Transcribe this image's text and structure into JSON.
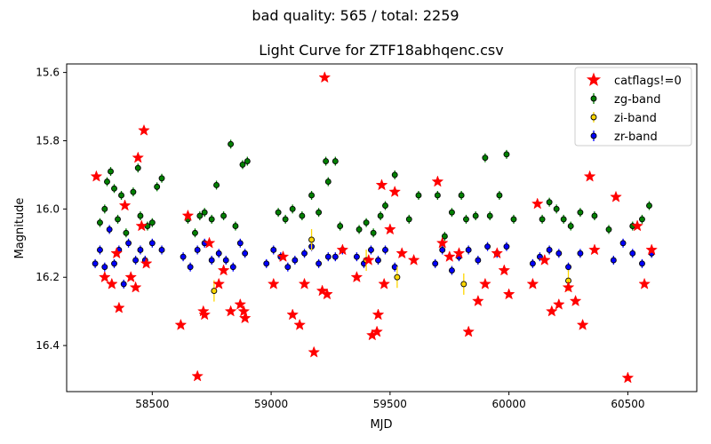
{
  "figure": {
    "suptitle": "bad quality: 565 / total: 2259"
  },
  "chart_data": {
    "type": "scatter",
    "title": "Light Curve for ZTF18abhqenc.csv",
    "xlabel": "MJD",
    "ylabel": "Magnitude",
    "xlim": [
      58140,
      60790
    ],
    "ylim": [
      16.535,
      15.575
    ],
    "y_inverted": true,
    "grid": false,
    "legend_position": "top-right",
    "x_ticks": [
      58500,
      59000,
      59500,
      60000,
      60500
    ],
    "x_tick_labels": [
      "58500",
      "59000",
      "59500",
      "60000",
      "60500"
    ],
    "y_ticks": [
      15.6,
      15.8,
      16.0,
      16.2,
      16.4
    ],
    "y_tick_labels": [
      "15.6",
      "15.8",
      "16.0",
      "16.2",
      "16.4"
    ],
    "series": [
      {
        "name": "catflags!=0",
        "marker": "star",
        "color": "#ff0000",
        "points": [
          [
            58265,
            15.905
          ],
          [
            58300,
            16.2
          ],
          [
            58330,
            16.22
          ],
          [
            58350,
            16.13
          ],
          [
            58360,
            16.29
          ],
          [
            58385,
            15.99
          ],
          [
            58410,
            16.2
          ],
          [
            58430,
            16.23
          ],
          [
            58440,
            15.85
          ],
          [
            58455,
            16.05
          ],
          [
            58465,
            15.77
          ],
          [
            58475,
            16.16
          ],
          [
            58620,
            16.34
          ],
          [
            58650,
            16.02
          ],
          [
            58690,
            16.49
          ],
          [
            58715,
            16.3
          ],
          [
            58720,
            16.31
          ],
          [
            58740,
            16.1
          ],
          [
            58780,
            16.22
          ],
          [
            58800,
            16.18
          ],
          [
            58830,
            16.3
          ],
          [
            58870,
            16.28
          ],
          [
            58885,
            16.3
          ],
          [
            58890,
            16.32
          ],
          [
            59010,
            16.22
          ],
          [
            59050,
            16.14
          ],
          [
            59090,
            16.31
          ],
          [
            59120,
            16.34
          ],
          [
            59140,
            16.22
          ],
          [
            59180,
            16.42
          ],
          [
            59215,
            16.24
          ],
          [
            59225,
            15.615
          ],
          [
            59235,
            16.25
          ],
          [
            59300,
            16.12
          ],
          [
            59360,
            16.2
          ],
          [
            59410,
            16.15
          ],
          [
            59425,
            16.37
          ],
          [
            59445,
            16.36
          ],
          [
            59450,
            16.31
          ],
          [
            59465,
            15.93
          ],
          [
            59475,
            16.22
          ],
          [
            59500,
            16.06
          ],
          [
            59520,
            15.95
          ],
          [
            59550,
            16.13
          ],
          [
            59600,
            16.15
          ],
          [
            59700,
            15.92
          ],
          [
            59720,
            16.1
          ],
          [
            59750,
            16.14
          ],
          [
            59790,
            16.13
          ],
          [
            59830,
            16.36
          ],
          [
            59870,
            16.27
          ],
          [
            59900,
            16.22
          ],
          [
            59950,
            16.13
          ],
          [
            59980,
            16.18
          ],
          [
            60000,
            16.25
          ],
          [
            60100,
            16.22
          ],
          [
            60120,
            15.985
          ],
          [
            60150,
            16.15
          ],
          [
            60180,
            16.3
          ],
          [
            60210,
            16.28
          ],
          [
            60250,
            16.23
          ],
          [
            60280,
            16.27
          ],
          [
            60310,
            16.34
          ],
          [
            60340,
            15.905
          ],
          [
            60360,
            16.12
          ],
          [
            60450,
            15.965
          ],
          [
            60500,
            16.495
          ],
          [
            60540,
            16.05
          ],
          [
            60570,
            16.22
          ],
          [
            60600,
            16.12
          ]
        ]
      },
      {
        "name": "zg-band",
        "marker": "circle",
        "color": "#008000",
        "points": [
          [
            58280,
            16.04
          ],
          [
            58300,
            16.0
          ],
          [
            58310,
            15.92
          ],
          [
            58325,
            15.89
          ],
          [
            58340,
            15.94
          ],
          [
            58355,
            16.03
          ],
          [
            58370,
            15.96
          ],
          [
            58390,
            16.07
          ],
          [
            58420,
            15.95
          ],
          [
            58440,
            15.88
          ],
          [
            58450,
            16.02
          ],
          [
            58480,
            16.05
          ],
          [
            58500,
            16.04
          ],
          [
            58520,
            15.935
          ],
          [
            58540,
            15.91
          ],
          [
            58650,
            16.03
          ],
          [
            58680,
            16.07
          ],
          [
            58700,
            16.02
          ],
          [
            58720,
            16.01
          ],
          [
            58750,
            16.03
          ],
          [
            58770,
            15.93
          ],
          [
            58800,
            16.02
          ],
          [
            58830,
            15.81
          ],
          [
            58850,
            16.05
          ],
          [
            58880,
            15.87
          ],
          [
            58900,
            15.86
          ],
          [
            59030,
            16.01
          ],
          [
            59060,
            16.03
          ],
          [
            59090,
            16.0
          ],
          [
            59130,
            16.02
          ],
          [
            59170,
            15.96
          ],
          [
            59200,
            16.01
          ],
          [
            59230,
            15.86
          ],
          [
            59240,
            15.92
          ],
          [
            59270,
            15.86
          ],
          [
            59290,
            16.05
          ],
          [
            59370,
            16.06
          ],
          [
            59400,
            16.04
          ],
          [
            59430,
            16.07
          ],
          [
            59460,
            16.02
          ],
          [
            59480,
            15.99
          ],
          [
            59520,
            15.9
          ],
          [
            59580,
            16.03
          ],
          [
            59620,
            15.96
          ],
          [
            59700,
            15.96
          ],
          [
            59730,
            16.08
          ],
          [
            59760,
            16.01
          ],
          [
            59800,
            15.96
          ],
          [
            59820,
            16.03
          ],
          [
            59860,
            16.02
          ],
          [
            59900,
            15.85
          ],
          [
            59920,
            16.02
          ],
          [
            59960,
            15.96
          ],
          [
            59990,
            15.84
          ],
          [
            60020,
            16.03
          ],
          [
            60140,
            16.03
          ],
          [
            60170,
            15.98
          ],
          [
            60200,
            16.0
          ],
          [
            60230,
            16.03
          ],
          [
            60260,
            16.05
          ],
          [
            60300,
            16.01
          ],
          [
            60360,
            16.02
          ],
          [
            60420,
            16.06
          ],
          [
            60520,
            16.05
          ],
          [
            60560,
            16.03
          ],
          [
            60590,
            15.99
          ]
        ]
      },
      {
        "name": "zi-band",
        "marker": "circle",
        "color": "#ffd700",
        "points": [
          [
            58760,
            16.24
          ],
          [
            59170,
            16.09
          ],
          [
            59400,
            16.15
          ],
          [
            59530,
            16.2
          ],
          [
            59810,
            16.22
          ],
          [
            60250,
            16.21
          ]
        ]
      },
      {
        "name": "zr-band",
        "marker": "circle",
        "color": "#0000ff",
        "points": [
          [
            58260,
            16.16
          ],
          [
            58280,
            16.12
          ],
          [
            58300,
            16.17
          ],
          [
            58320,
            16.06
          ],
          [
            58340,
            16.16
          ],
          [
            58360,
            16.12
          ],
          [
            58380,
            16.22
          ],
          [
            58400,
            16.1
          ],
          [
            58430,
            16.15
          ],
          [
            58450,
            16.12
          ],
          [
            58470,
            16.15
          ],
          [
            58500,
            16.1
          ],
          [
            58540,
            16.12
          ],
          [
            58630,
            16.14
          ],
          [
            58660,
            16.17
          ],
          [
            58690,
            16.12
          ],
          [
            58720,
            16.1
          ],
          [
            58750,
            16.15
          ],
          [
            58780,
            16.13
          ],
          [
            58810,
            16.15
          ],
          [
            58840,
            16.17
          ],
          [
            58870,
            16.1
          ],
          [
            58890,
            16.13
          ],
          [
            58980,
            16.16
          ],
          [
            59010,
            16.12
          ],
          [
            59040,
            16.14
          ],
          [
            59070,
            16.17
          ],
          [
            59100,
            16.15
          ],
          [
            59140,
            16.13
          ],
          [
            59170,
            16.11
          ],
          [
            59200,
            16.16
          ],
          [
            59240,
            16.14
          ],
          [
            59270,
            16.14
          ],
          [
            59300,
            16.12
          ],
          [
            59360,
            16.14
          ],
          [
            59390,
            16.16
          ],
          [
            59420,
            16.12
          ],
          [
            59450,
            16.15
          ],
          [
            59480,
            16.12
          ],
          [
            59520,
            16.17
          ],
          [
            59690,
            16.16
          ],
          [
            59720,
            16.12
          ],
          [
            59760,
            16.18
          ],
          [
            59790,
            16.14
          ],
          [
            59830,
            16.12
          ],
          [
            59870,
            16.15
          ],
          [
            59910,
            16.11
          ],
          [
            59950,
            16.13
          ],
          [
            59990,
            16.11
          ],
          [
            60100,
            16.16
          ],
          [
            60130,
            16.14
          ],
          [
            60170,
            16.12
          ],
          [
            60210,
            16.13
          ],
          [
            60250,
            16.17
          ],
          [
            60300,
            16.13
          ],
          [
            60440,
            16.15
          ],
          [
            60480,
            16.1
          ],
          [
            60520,
            16.13
          ],
          [
            60560,
            16.16
          ],
          [
            60600,
            16.13
          ]
        ]
      }
    ]
  }
}
